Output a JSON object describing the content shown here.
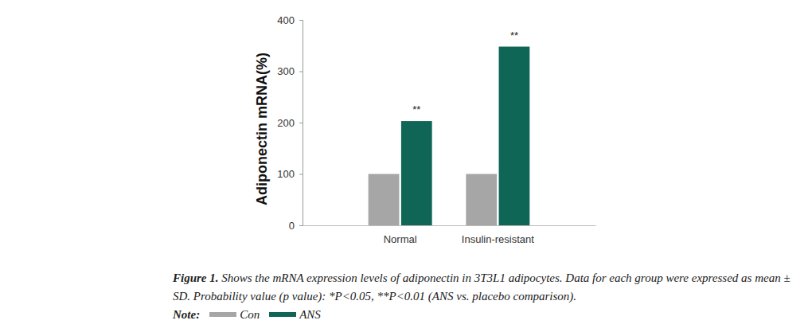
{
  "chart_data": {
    "type": "bar",
    "y_label": "Adiponectin mRNA(%)",
    "categories": [
      "Normal",
      "Insulin-resistant"
    ],
    "series": [
      {
        "name": "Con",
        "color": "#a6a6a6",
        "values": [
          100,
          100
        ]
      },
      {
        "name": "ANS",
        "color": "#0f6657",
        "values": [
          203,
          348
        ]
      }
    ],
    "ylim": [
      0,
      400
    ],
    "yticks": [
      0,
      100,
      200,
      300,
      400
    ],
    "annotations": [
      {
        "text": "**",
        "category": "Normal",
        "series": "ANS"
      },
      {
        "text": "**",
        "category": "Insulin-resistant",
        "series": "ANS"
      }
    ],
    "caption_label": "Figure 1.",
    "caption": "Shows the mRNA expression levels of adiponectin in 3T3L1 adipocytes. Data for each group were expressed as mean ± SD. Probability value (p value): *P<0.05, **P<0.01 (ANS vs. placebo comparison).",
    "legend_label": "Note:"
  }
}
